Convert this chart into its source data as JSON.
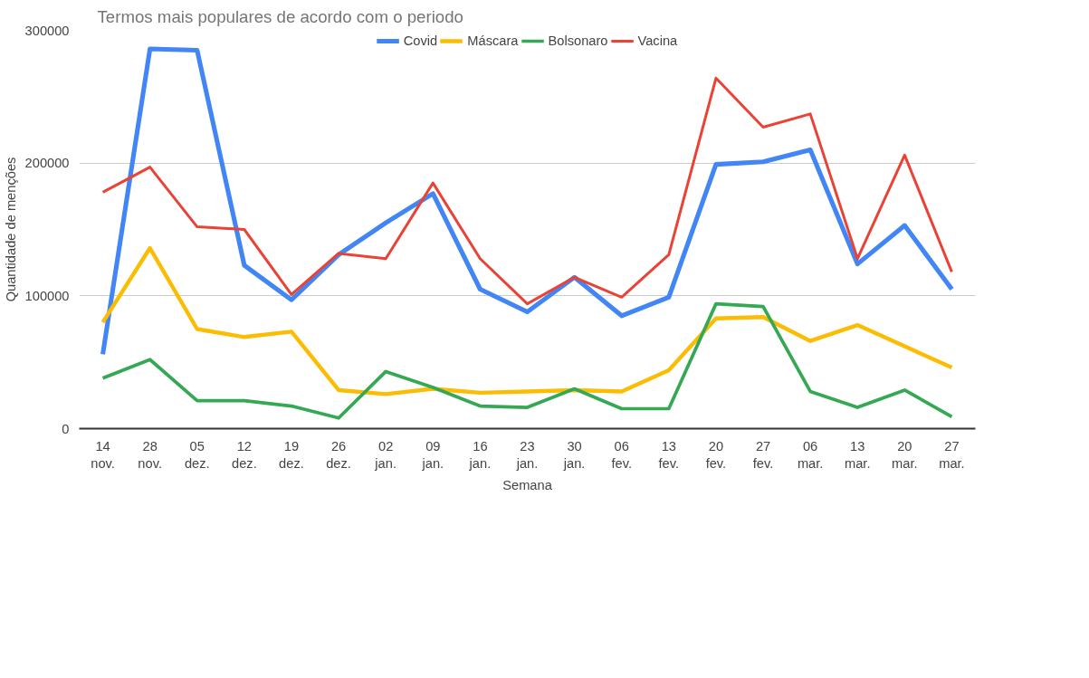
{
  "chart_data": {
    "type": "line",
    "title": "Termos mais populares de acordo com o periodo",
    "xlabel": "Semana",
    "ylabel": "Quantidade de menções",
    "categories": [
      "14\nnov.",
      "28\nnov.",
      "05\ndez.",
      "12\ndez.",
      "19\ndez.",
      "26\ndez.",
      "02\njan.",
      "09\njan.",
      "16\njan.",
      "23\njan.",
      "30\njan.",
      "06\nfev.",
      "13\nfev.",
      "20\nfev.",
      "27\nfev.",
      "06\nmar.",
      "13\nmar.",
      "20\nmar.",
      "27\nmar."
    ],
    "series": [
      {
        "name": "Covid",
        "color": "#4285f4",
        "values": [
          56000,
          286000,
          285000,
          123000,
          97000,
          131000,
          155000,
          177000,
          105000,
          88000,
          114000,
          85000,
          99000,
          199000,
          201000,
          210000,
          124000,
          153000,
          105000
        ]
      },
      {
        "name": "Máscara",
        "color": "#fbbc04",
        "values": [
          80000,
          136000,
          75000,
          69000,
          73000,
          29000,
          26000,
          30000,
          27000,
          28000,
          29000,
          28000,
          44000,
          83000,
          84000,
          66000,
          78000,
          62000,
          46000
        ]
      },
      {
        "name": "Bolsonaro",
        "color": "#34a853",
        "values": [
          38000,
          52000,
          21000,
          21000,
          17000,
          8000,
          43000,
          31000,
          17000,
          16000,
          30000,
          15000,
          15000,
          94000,
          92000,
          28000,
          16000,
          29000,
          9000
        ]
      },
      {
        "name": "Vacina",
        "color": "#ea4335",
        "values": [
          178000,
          197000,
          152000,
          150000,
          101000,
          132000,
          128000,
          185000,
          128000,
          94000,
          114000,
          99000,
          131000,
          264000,
          227000,
          237000,
          128000,
          206000,
          118000
        ]
      }
    ],
    "ylim": [
      0,
      300000
    ],
    "yticks": [
      0,
      100000,
      200000,
      300000
    ],
    "grid": "y",
    "legend": "top",
    "marker": "none",
    "line_style": "solid"
  }
}
